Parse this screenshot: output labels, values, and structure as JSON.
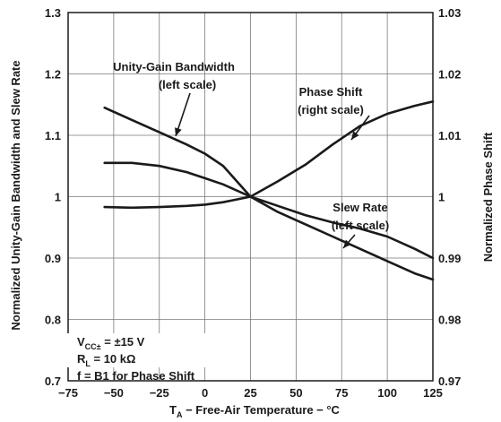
{
  "chart_data": {
    "type": "line",
    "xlabel": {
      "main": "T",
      "sub": "A",
      "rest": " − Free-Air Temperature − °C"
    },
    "ylabel_left": "Normalized Unity-Gain Bandwidth and Slew Rate",
    "ylabel_right": "Normalized Phase Shift",
    "xlim": [
      -75,
      125
    ],
    "ylim_left": [
      0.7,
      1.3
    ],
    "ylim_right": [
      0.97,
      1.03
    ],
    "x_ticks": [
      "−75",
      "−50",
      "−25",
      "0",
      "25",
      "50",
      "75",
      "100",
      "125"
    ],
    "x_tick_values": [
      -75,
      -50,
      -25,
      0,
      25,
      50,
      75,
      100,
      125
    ],
    "y_left_ticks": [
      "0.7",
      "0.8",
      "0.9",
      "1",
      "1.1",
      "1.2",
      "1.3"
    ],
    "y_left_tick_values": [
      0.7,
      0.8,
      0.9,
      1,
      1.1,
      1.2,
      1.3
    ],
    "y_right_ticks": [
      "0.97",
      "0.98",
      "0.99",
      "1",
      "1.01",
      "1.02",
      "1.03"
    ],
    "y_right_tick_values": [
      0.97,
      0.98,
      0.99,
      1,
      1.01,
      1.02,
      1.03
    ],
    "grid": true,
    "series": [
      {
        "name": "Unity-Gain Bandwidth",
        "axis": "left",
        "x": [
          -55,
          -40,
          -25,
          -10,
          0,
          10,
          25,
          40,
          55,
          70,
          85,
          100,
          115,
          125
        ],
        "y": [
          1.145,
          1.125,
          1.105,
          1.085,
          1.07,
          1.05,
          1.0,
          0.975,
          0.955,
          0.935,
          0.915,
          0.895,
          0.875,
          0.865
        ]
      },
      {
        "name": "Phase Shift",
        "axis": "right",
        "x": [
          -55,
          -40,
          -25,
          -10,
          0,
          10,
          25,
          40,
          55,
          70,
          85,
          100,
          115,
          125
        ],
        "y": [
          0.9983,
          0.9982,
          0.9983,
          0.9985,
          0.9987,
          0.9991,
          1.0,
          1.0025,
          1.0052,
          1.0085,
          1.0115,
          1.0135,
          1.0148,
          1.0155
        ]
      },
      {
        "name": "Slew Rate",
        "axis": "left",
        "x": [
          -55,
          -40,
          -25,
          -10,
          0,
          10,
          25,
          40,
          55,
          70,
          85,
          100,
          115,
          125
        ],
        "y": [
          1.055,
          1.055,
          1.05,
          1.04,
          1.03,
          1.02,
          1.0,
          0.985,
          0.97,
          0.958,
          0.948,
          0.935,
          0.915,
          0.9
        ]
      }
    ],
    "annotations": [
      {
        "line1": "Unity-Gain Bandwidth",
        "line2": "(left scale)"
      },
      {
        "line1": "Phase Shift",
        "line2": "(right scale)"
      },
      {
        "line1": "Slew Rate",
        "line2": "(left scale)"
      }
    ],
    "conditions": [
      {
        "main": "V",
        "sub": "CC±",
        "rest": " = ±15 V"
      },
      {
        "main": "R",
        "sub": "L",
        "rest": " = 10 kΩ"
      },
      {
        "main": "f = B1 for Phase Shift",
        "sub": "",
        "rest": ""
      }
    ]
  }
}
